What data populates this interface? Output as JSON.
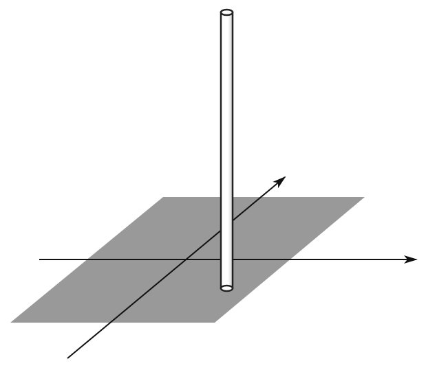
{
  "figure": {
    "kind": "3d-axes-with-vertical-rod",
    "labels": [],
    "colors": {
      "plane_fill": "#999999",
      "axis_stroke": "#111111",
      "rod_outline": "#222222",
      "rod_fill": "#ffffff",
      "rod_shade": "#d0d0d0",
      "background": "#ffffff"
    }
  }
}
